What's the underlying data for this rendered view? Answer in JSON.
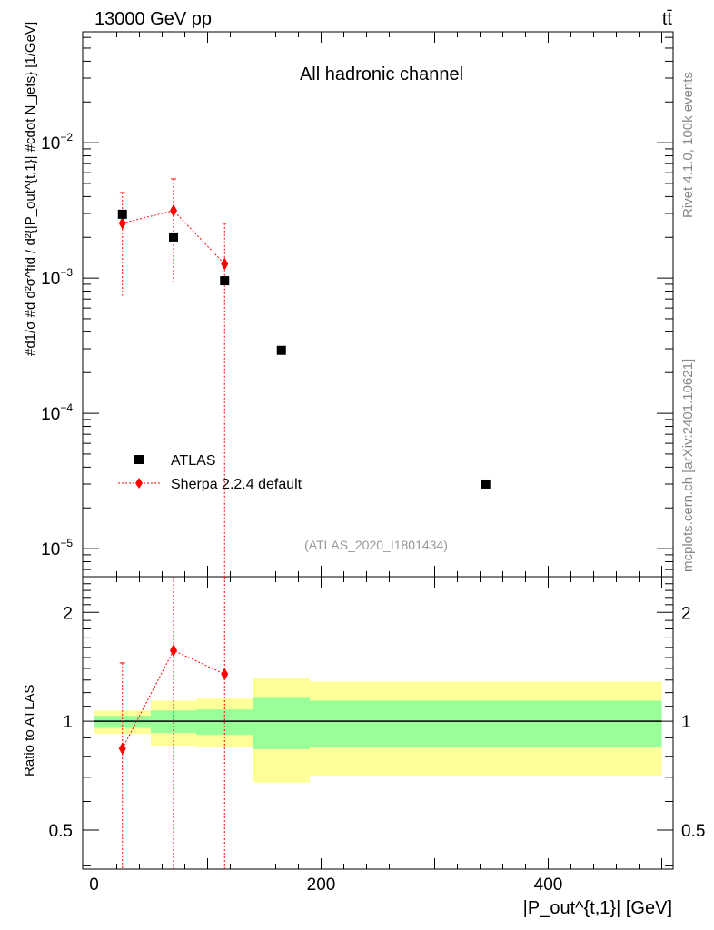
{
  "header": {
    "energy": "13000 GeV pp",
    "process": "tt̄"
  },
  "side_labels": {
    "rivet": "Rivet 4.1.0,  100k events",
    "mcplots": "mcplots.cern.ch [arXiv:2401.10621]"
  },
  "chart_data": [
    {
      "type": "scatter",
      "title": "All hadronic channel",
      "annotation": "(ATLAS_2020_I1801434)",
      "xlabel": "|P_out^{t,1}| [GeV]",
      "ylabel": "#d1/σ #d d²σ^fid / d²{|P_out^{t,1}| #cdot N_jets} [1/GeV]",
      "ylabel_parts": {
        "main": "#d¹⁄σ #d d²σᶠⁱᵈ / d²{|P",
        "sup": "t,1",
        "sub": "out",
        "tail": "| #cdot N",
        "jets": "jets",
        "unit": "} [1/GeV]"
      },
      "yscale": "log",
      "xlim": [
        -10,
        510
      ],
      "ylim": [
        6.2e-06,
        0.066
      ],
      "ytick_labels": [
        {
          "value": 0.01,
          "label": "10",
          "exp": "−2"
        },
        {
          "value": 0.001,
          "label": "10",
          "exp": "−3"
        },
        {
          "value": 0.0001,
          "label": "10",
          "exp": "−4"
        },
        {
          "value": 1e-05,
          "label": "10",
          "exp": "−5"
        }
      ],
      "legend": {
        "placement": "bottom-left",
        "entries": [
          "ATLAS",
          "Sherpa 2.2.4 default"
        ]
      },
      "series": [
        {
          "name": "ATLAS",
          "marker": "square",
          "color": "#000000",
          "x": [
            25,
            70,
            115,
            165,
            345
          ],
          "xerr": [
            25,
            20,
            25,
            25,
            155
          ],
          "y": [
            0.00296,
            0.00201,
            0.000955,
            0.000292,
            3e-05
          ]
        },
        {
          "name": "Sherpa 2.2.4 default",
          "marker": "diamond",
          "color": "#ff0000",
          "linestyle": "dotted",
          "x": [
            25,
            70,
            115
          ],
          "y": [
            0.00254,
            0.00315,
            0.00127
          ],
          "yerr_up": [
            0.00428,
            0.0054,
            0.00254
          ],
          "yerr_down": [
            0.00074,
            0.00092,
            1e-06
          ]
        }
      ]
    },
    {
      "type": "scatter",
      "ylabel": "Ratio to ATLAS",
      "xlabel": "|P_out^{t,1}| [GeV]",
      "xlabel_parts": {
        "pre": "|P",
        "sup": "t,1",
        "sub": "out",
        "post": "| [GeV]"
      },
      "yscale": "log",
      "xlim": [
        -10,
        510
      ],
      "ylim": [
        0.39,
        2.51
      ],
      "xticks": [
        0,
        200,
        400
      ],
      "yticks": [
        0.5,
        1,
        2
      ],
      "ytick_labels": [
        "0.5",
        "1",
        "2"
      ],
      "bands": {
        "edges": [
          0,
          50,
          90,
          140,
          190,
          500
        ],
        "yellow_up": [
          1.071,
          1.14,
          1.155,
          1.318,
          1.288
        ],
        "yellow_down": [
          0.923,
          0.856,
          0.846,
          0.676,
          0.708
        ],
        "green_up": [
          1.035,
          1.071,
          1.078,
          1.161,
          1.14
        ],
        "green_down": [
          0.96,
          0.928,
          0.917,
          0.837,
          0.851
        ],
        "yellow_color": "#ffff99",
        "green_color": "#99ff99"
      },
      "series": [
        {
          "name": "Sherpa 2.2.4 default",
          "color": "#ff0000",
          "x": [
            25,
            70,
            115
          ],
          "y": [
            0.84,
            1.57,
            1.35
          ],
          "yerr_up": [
            1.45,
            10,
            10
          ],
          "yerr_down": [
            0.01,
            0.01,
            0.01
          ]
        }
      ]
    }
  ]
}
